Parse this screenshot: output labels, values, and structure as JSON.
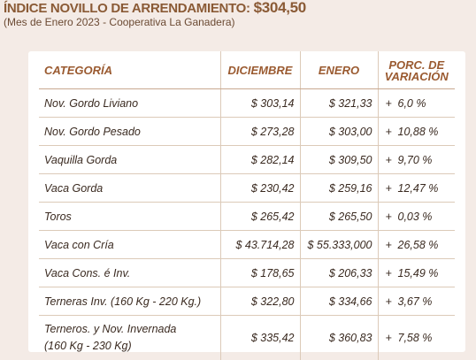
{
  "header": {
    "title_prefix": "ÍNDICE NOVILLO DE ARRENDAMIENTO: ",
    "title_amount": "$304,50",
    "subtitle": "(Mes de Enero 2023 - Cooperativa La Ganadera)"
  },
  "table": {
    "headers": {
      "categoria": "CATEGORÍA",
      "diciembre": "DICIEMBRE",
      "enero": "ENERO",
      "variacion_line1": "PORC. DE",
      "variacion_line2": "VARIACIÓN"
    },
    "rows": [
      {
        "categoria": "Nov. Gordo Liviano",
        "diciembre": "$ 303,14",
        "enero": "$ 321,33",
        "sign": "+",
        "variacion": "6,0 %"
      },
      {
        "categoria": "Nov. Gordo Pesado",
        "diciembre": "$ 273,28",
        "enero": "$ 303,00",
        "sign": "+",
        "variacion": "10,88 %"
      },
      {
        "categoria": "Vaquilla Gorda",
        "diciembre": "$ 282,14",
        "enero": "$ 309,50",
        "sign": "+",
        "variacion": "9,70 %"
      },
      {
        "categoria": "Vaca Gorda",
        "diciembre": "$ 230,42",
        "enero": "$ 259,16",
        "sign": "+",
        "variacion": "12,47 %"
      },
      {
        "categoria": "Toros",
        "diciembre": "$ 265,42",
        "enero": "$ 265,50",
        "sign": "+",
        "variacion": "0,03 %"
      },
      {
        "categoria": "Vaca con Cría",
        "diciembre": "$ 43.714,28",
        "enero": "$ 55.333,000",
        "sign": "+",
        "variacion": "26,58 %"
      },
      {
        "categoria": "Vaca Cons. é Inv.",
        "diciembre": "$ 178,65",
        "enero": "$ 206,33",
        "sign": "+",
        "variacion": "15,49 %"
      },
      {
        "categoria": "Terneras Inv. (160 Kg - 220 Kg.)",
        "diciembre": "$ 322,80",
        "enero": "$ 334,66",
        "sign": "+",
        "variacion": "3,67 %"
      },
      {
        "categoria_line1": "Terneros. y Nov. Invernada",
        "categoria_line2": "(160 Kg  - 230 Kg)",
        "diciembre": "$ 335,42",
        "enero": "$ 360,83",
        "sign": "+",
        "variacion": "7,58 %"
      }
    ]
  }
}
